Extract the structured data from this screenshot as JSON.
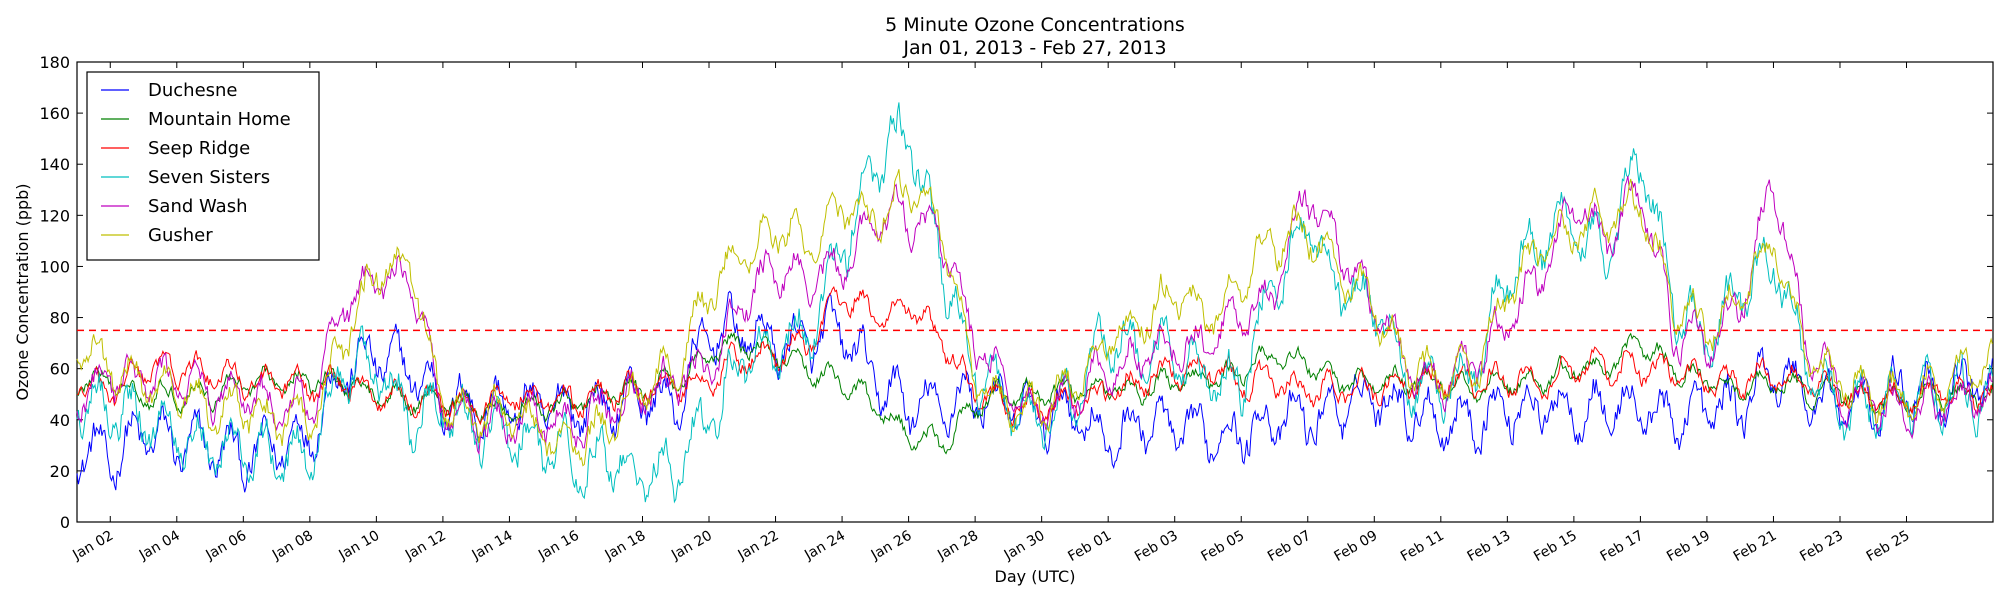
{
  "chart_data": {
    "type": "line",
    "title": "5 Minute Ozone Concentrations",
    "subtitle": "Jan 01, 2013 - Feb 27, 2013",
    "xlabel": "Day (UTC)",
    "ylabel": "Ozone Concentration (ppb)",
    "xlim": [
      "2013-01-01",
      "2013-02-27"
    ],
    "ylim": [
      0,
      180
    ],
    "yticks": [
      0,
      20,
      40,
      60,
      80,
      100,
      120,
      140,
      160,
      180
    ],
    "xticks": [
      {
        "date": "2013-01-02",
        "label": "Jan 02"
      },
      {
        "date": "2013-01-04",
        "label": "Jan 04"
      },
      {
        "date": "2013-01-06",
        "label": "Jan 06"
      },
      {
        "date": "2013-01-08",
        "label": "Jan 08"
      },
      {
        "date": "2013-01-10",
        "label": "Jan 10"
      },
      {
        "date": "2013-01-12",
        "label": "Jan 12"
      },
      {
        "date": "2013-01-14",
        "label": "Jan 14"
      },
      {
        "date": "2013-01-16",
        "label": "Jan 16"
      },
      {
        "date": "2013-01-18",
        "label": "Jan 18"
      },
      {
        "date": "2013-01-20",
        "label": "Jan 20"
      },
      {
        "date": "2013-01-22",
        "label": "Jan 22"
      },
      {
        "date": "2013-01-24",
        "label": "Jan 24"
      },
      {
        "date": "2013-01-26",
        "label": "Jan 26"
      },
      {
        "date": "2013-01-28",
        "label": "Jan 28"
      },
      {
        "date": "2013-01-30",
        "label": "Jan 30"
      },
      {
        "date": "2013-02-01",
        "label": "Feb 01"
      },
      {
        "date": "2013-02-03",
        "label": "Feb 03"
      },
      {
        "date": "2013-02-05",
        "label": "Feb 05"
      },
      {
        "date": "2013-02-07",
        "label": "Feb 07"
      },
      {
        "date": "2013-02-09",
        "label": "Feb 09"
      },
      {
        "date": "2013-02-11",
        "label": "Feb 11"
      },
      {
        "date": "2013-02-13",
        "label": "Feb 13"
      },
      {
        "date": "2013-02-15",
        "label": "Feb 15"
      },
      {
        "date": "2013-02-17",
        "label": "Feb 17"
      },
      {
        "date": "2013-02-19",
        "label": "Feb 19"
      },
      {
        "date": "2013-02-21",
        "label": "Feb 21"
      },
      {
        "date": "2013-02-23",
        "label": "Feb 23"
      },
      {
        "date": "2013-02-25",
        "label": "Feb 25"
      }
    ],
    "grid": false,
    "legend_position": "top-left",
    "reference_line": {
      "y": 75,
      "color": "#ff0000",
      "style": "dashed"
    },
    "x": [
      "2013-01-01",
      "2013-01-02",
      "2013-01-03",
      "2013-01-04",
      "2013-01-05",
      "2013-01-06",
      "2013-01-07",
      "2013-01-08",
      "2013-01-09",
      "2013-01-10",
      "2013-01-11",
      "2013-01-12",
      "2013-01-13",
      "2013-01-14",
      "2013-01-15",
      "2013-01-16",
      "2013-01-17",
      "2013-01-18",
      "2013-01-19",
      "2013-01-20",
      "2013-01-21",
      "2013-01-22",
      "2013-01-23",
      "2013-01-24",
      "2013-01-25",
      "2013-01-26",
      "2013-01-27",
      "2013-01-28",
      "2013-01-29",
      "2013-01-30",
      "2013-01-31",
      "2013-02-01",
      "2013-02-02",
      "2013-02-03",
      "2013-02-04",
      "2013-02-05",
      "2013-02-06",
      "2013-02-07",
      "2013-02-08",
      "2013-02-09",
      "2013-02-10",
      "2013-02-11",
      "2013-02-12",
      "2013-02-13",
      "2013-02-14",
      "2013-02-15",
      "2013-02-16",
      "2013-02-17",
      "2013-02-18",
      "2013-02-19",
      "2013-02-20",
      "2013-02-21",
      "2013-02-22",
      "2013-02-23",
      "2013-02-24",
      "2013-02-25",
      "2013-02-26",
      "2013-02-27"
    ],
    "series": [
      {
        "name": "Duchesne",
        "color": "#0000ff",
        "values": [
          30,
          25,
          35,
          30,
          30,
          25,
          30,
          35,
          60,
          65,
          60,
          48,
          45,
          45,
          45,
          45,
          45,
          50,
          45,
          75,
          75,
          70,
          70,
          75,
          55,
          45,
          45,
          50,
          45,
          40,
          45,
          30,
          40,
          35,
          35,
          35,
          40,
          40,
          45,
          50,
          45,
          40,
          40,
          45,
          45,
          45,
          45,
          45,
          40,
          45,
          45,
          60,
          50,
          45,
          45,
          55,
          50,
          55
        ]
      },
      {
        "name": "Mountain Home",
        "color": "#008000",
        "values": [
          55,
          55,
          50,
          50,
          50,
          55,
          55,
          55,
          55,
          50,
          48,
          48,
          44,
          44,
          45,
          46,
          50,
          52,
          55,
          65,
          70,
          65,
          60,
          55,
          45,
          35,
          30,
          45,
          50,
          50,
          52,
          52,
          52,
          55,
          55,
          60,
          65,
          62,
          55,
          55,
          55,
          55,
          52,
          55,
          55,
          60,
          60,
          70,
          60,
          55,
          52,
          55,
          52,
          50,
          48,
          48,
          50,
          50
        ]
      },
      {
        "name": "Seep Ridge",
        "color": "#ff0000",
        "values": [
          55,
          50,
          60,
          60,
          58,
          55,
          55,
          52,
          55,
          50,
          48,
          48,
          45,
          50,
          48,
          48,
          50,
          52,
          55,
          55,
          65,
          65,
          70,
          90,
          80,
          85,
          70,
          50,
          45,
          45,
          48,
          50,
          55,
          60,
          60,
          55,
          55,
          50,
          52,
          52,
          55,
          55,
          55,
          55,
          55,
          60,
          60,
          60,
          58,
          55,
          55,
          58,
          55,
          50,
          48,
          48,
          52,
          50
        ]
      },
      {
        "name": "Seven Sisters",
        "color": "#00bfbf",
        "values": [
          50,
          45,
          40,
          35,
          30,
          30,
          25,
          25,
          60,
          60,
          40,
          45,
          38,
          35,
          30,
          25,
          25,
          20,
          20,
          40,
          65,
          70,
          75,
          105,
          140,
          155,
          100,
          60,
          45,
          40,
          50,
          75,
          65,
          65,
          55,
          55,
          95,
          115,
          90,
          85,
          55,
          55,
          60,
          95,
          110,
          120,
          100,
          145,
          85,
          70,
          90,
          105,
          60,
          45,
          45,
          50,
          50,
          50
        ]
      },
      {
        "name": "Sand Wash",
        "color": "#bf00bf",
        "values": [
          50,
          55,
          55,
          55,
          50,
          50,
          45,
          45,
          85,
          95,
          95,
          45,
          40,
          38,
          40,
          38,
          45,
          50,
          55,
          60,
          85,
          100,
          95,
          100,
          115,
          120,
          110,
          70,
          50,
          45,
          50,
          60,
          65,
          70,
          70,
          80,
          90,
          130,
          105,
          85,
          60,
          55,
          60,
          80,
          95,
          125,
          110,
          130,
          75,
          70,
          85,
          135,
          70,
          50,
          45,
          45,
          45,
          50
        ]
      },
      {
        "name": "Gusher",
        "color": "#bfbf00",
        "values": [
          70,
          60,
          55,
          50,
          45,
          45,
          40,
          40,
          70,
          100,
          100,
          45,
          42,
          42,
          35,
          30,
          40,
          55,
          60,
          90,
          105,
          115,
          110,
          125,
          120,
          130,
          115,
          55,
          45,
          45,
          55,
          70,
          80,
          90,
          80,
          95,
          110,
          115,
          95,
          85,
          60,
          55,
          60,
          90,
          105,
          115,
          120,
          125,
          85,
          75,
          90,
          110,
          65,
          55,
          50,
          50,
          55,
          60
        ]
      }
    ]
  }
}
